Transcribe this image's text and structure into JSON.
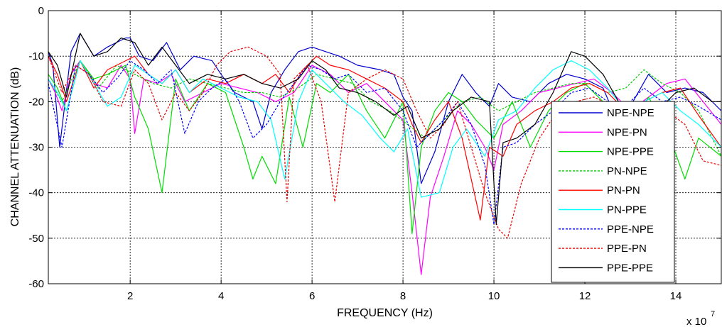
{
  "chart_data": {
    "type": "line",
    "title": "",
    "xlabel": "FREQUENCY (Hz)",
    "ylabel": "CHANNEL ATTENUATION (dB)",
    "x_multiplier_label": {
      "base": "x 10",
      "exponent": "7"
    },
    "xlim": [
      0.2,
      15
    ],
    "ylim": [
      -60,
      0
    ],
    "x_ticks": [
      2,
      4,
      6,
      8,
      10,
      12,
      14
    ],
    "y_ticks": [
      0,
      -10,
      -20,
      -30,
      -40,
      -50,
      -60
    ],
    "grid": true,
    "legend_position": "bottom-right",
    "series": [
      {
        "name": "NPE-NPE",
        "color": "#0000CD",
        "dash": "solid",
        "x": [
          0.2,
          0.3,
          0.45,
          0.7,
          0.9,
          1.2,
          1.5,
          1.9,
          2.0,
          2.2,
          2.5,
          2.8,
          3.1,
          3.4,
          3.8,
          4.0,
          4.3,
          4.7,
          4.9,
          5.1,
          5.4,
          5.7,
          6.0,
          6.3,
          6.6,
          7.0,
          7.5,
          7.8,
          8.0,
          8.2,
          8.4,
          8.7,
          9.0,
          9.3,
          9.6,
          9.9,
          10.1,
          10.4,
          10.8,
          11.2,
          11.6,
          12.0,
          12.4,
          12.7,
          13.0,
          13.4,
          13.8,
          14.2,
          14.6,
          15.0
        ],
        "y": [
          -9,
          -12,
          -30,
          -9,
          -5,
          -10,
          -8,
          -6,
          -6,
          -10,
          -11,
          -7,
          -13,
          -10,
          -11,
          -14,
          -18,
          -20,
          -26,
          -18,
          -13,
          -9,
          -8,
          -9,
          -10,
          -12,
          -13,
          -14,
          -19,
          -22,
          -38,
          -31,
          -20,
          -14,
          -18,
          -21,
          -16,
          -19,
          -20,
          -16,
          -14,
          -15,
          -17,
          -24,
          -21,
          -14,
          -18,
          -17,
          -18,
          -22
        ]
      },
      {
        "name": "NPE-PN",
        "color": "#FF00FF",
        "dash": "solid",
        "x": [
          0.2,
          0.35,
          0.5,
          0.7,
          0.9,
          1.2,
          1.5,
          1.8,
          2.0,
          2.1,
          2.3,
          2.6,
          2.9,
          3.2,
          3.6,
          4.0,
          4.4,
          4.8,
          5.2,
          5.6,
          6.0,
          6.4,
          6.8,
          7.2,
          7.6,
          8.0,
          8.2,
          8.4,
          8.6,
          8.9,
          9.2,
          9.5,
          9.8,
          10.0,
          10.2,
          10.6,
          11.0,
          11.4,
          11.8,
          12.2,
          12.6,
          13.0,
          13.4,
          13.8,
          14.2,
          14.6,
          15.0
        ],
        "y": [
          -15,
          -18,
          -22,
          -14,
          -11,
          -16,
          -17,
          -12,
          -15,
          -27,
          -15,
          -16,
          -14,
          -20,
          -18,
          -16,
          -17,
          -18,
          -20,
          -18,
          -12,
          -14,
          -18,
          -16,
          -20,
          -24,
          -40,
          -58,
          -41,
          -32,
          -22,
          -25,
          -30,
          -35,
          -25,
          -22,
          -18,
          -17,
          -16,
          -15,
          -18,
          -22,
          -19,
          -16,
          -15,
          -20,
          -25
        ]
      },
      {
        "name": "NPE-PPE",
        "color": "#00DD00",
        "dash": "solid",
        "x": [
          0.2,
          0.4,
          0.6,
          0.9,
          1.2,
          1.5,
          1.9,
          2.1,
          2.4,
          2.7,
          3.0,
          3.3,
          3.7,
          4.1,
          4.5,
          4.7,
          4.9,
          5.2,
          5.5,
          5.8,
          6.1,
          6.4,
          6.8,
          7.2,
          7.6,
          8.0,
          8.2,
          8.4,
          8.7,
          9.0,
          9.3,
          9.6,
          10.0,
          10.4,
          10.8,
          11.2,
          11.6,
          12.0,
          12.4,
          12.8,
          13.1,
          13.4,
          13.8,
          14.2,
          14.5,
          15.0
        ],
        "y": [
          -14,
          -17,
          -22,
          -11,
          -15,
          -14,
          -12,
          -19,
          -26,
          -40,
          -15,
          -22,
          -16,
          -18,
          -30,
          -37,
          -32,
          -38,
          -19,
          -30,
          -16,
          -18,
          -14,
          -22,
          -28,
          -20,
          -49,
          -30,
          -22,
          -18,
          -20,
          -24,
          -28,
          -20,
          -30,
          -22,
          -18,
          -16,
          -20,
          -30,
          -24,
          -19,
          -26,
          -37,
          -28,
          -32
        ]
      },
      {
        "name": "PN-NPE",
        "color": "#00CC00",
        "dash": "dashed",
        "x": [
          0.2,
          0.5,
          0.9,
          1.3,
          1.7,
          2.1,
          2.5,
          2.9,
          3.3,
          3.7,
          4.1,
          4.5,
          4.9,
          5.3,
          5.7,
          6.1,
          6.5,
          6.9,
          7.3,
          7.7,
          8.1,
          8.5,
          8.9,
          9.3,
          9.7,
          10.1,
          10.5,
          10.9,
          11.3,
          11.7,
          12.1,
          12.5,
          12.9,
          13.3,
          13.7,
          14.1,
          14.5,
          15.0
        ],
        "y": [
          -15,
          -20,
          -11,
          -17,
          -12,
          -14,
          -16,
          -17,
          -15,
          -16,
          -17,
          -18,
          -18,
          -19,
          -17,
          -14,
          -15,
          -16,
          -20,
          -22,
          -25,
          -28,
          -24,
          -20,
          -19,
          -22,
          -20,
          -18,
          -17,
          -16,
          -16,
          -18,
          -17,
          -13,
          -16,
          -18,
          -22,
          -32
        ]
      },
      {
        "name": "PN-PN",
        "color": "#FF0000",
        "dash": "solid",
        "x": [
          0.2,
          0.4,
          0.6,
          0.9,
          1.2,
          1.5,
          1.9,
          2.1,
          2.4,
          2.7,
          3.0,
          3.3,
          3.7,
          4.1,
          4.5,
          4.9,
          5.2,
          5.5,
          5.8,
          6.1,
          6.4,
          6.8,
          7.2,
          7.6,
          8.0,
          8.2,
          8.4,
          8.7,
          9.0,
          9.3,
          9.7,
          9.9,
          10.2,
          10.5,
          10.9,
          11.3,
          11.7,
          12.1,
          12.5,
          12.9,
          13.3,
          13.7,
          14.1,
          14.5,
          15.0
        ],
        "y": [
          -10,
          -14,
          -20,
          -11,
          -17,
          -13,
          -11,
          -10,
          -14,
          -16,
          -13,
          -18,
          -15,
          -16,
          -14,
          -16,
          -14,
          -18,
          -13,
          -10,
          -12,
          -13,
          -15,
          -17,
          -20,
          -25,
          -29,
          -24,
          -20,
          -28,
          -46,
          -30,
          -32,
          -25,
          -22,
          -20,
          -17,
          -16,
          -18,
          -22,
          -20,
          -18,
          -17,
          -23,
          -30
        ]
      },
      {
        "name": "PN-PPE",
        "color": "#00FFFF",
        "dash": "solid",
        "x": [
          0.2,
          0.4,
          0.6,
          0.9,
          1.2,
          1.5,
          1.8,
          2.1,
          2.4,
          2.7,
          3.0,
          3.3,
          3.6,
          4.0,
          4.4,
          4.8,
          5.1,
          5.4,
          5.7,
          6.0,
          6.3,
          6.7,
          7.1,
          7.5,
          7.8,
          8.1,
          8.4,
          8.8,
          9.1,
          9.4,
          9.8,
          10.1,
          10.5,
          10.9,
          11.3,
          11.7,
          12.1,
          12.5,
          12.9,
          13.3,
          13.7,
          14.1,
          14.5,
          15.0
        ],
        "y": [
          -15,
          -18,
          -22,
          -11,
          -16,
          -21,
          -19,
          -12,
          -14,
          -16,
          -13,
          -18,
          -15,
          -17,
          -19,
          -20,
          -24,
          -37,
          -20,
          -13,
          -16,
          -20,
          -23,
          -28,
          -31,
          -26,
          -41,
          -40,
          -30,
          -26,
          -32,
          -24,
          -22,
          -17,
          -13,
          -11,
          -13,
          -17,
          -22,
          -20,
          -18,
          -22,
          -25,
          -30
        ]
      },
      {
        "name": "PPE-NPE",
        "color": "#0000FF",
        "dash": "dashed",
        "x": [
          0.2,
          0.5,
          0.8,
          1.1,
          1.4,
          1.7,
          2.0,
          2.3,
          2.6,
          2.9,
          3.2,
          3.5,
          3.8,
          4.1,
          4.4,
          4.7,
          5.0,
          5.3,
          5.6,
          5.9,
          6.2,
          6.5,
          6.8,
          7.2,
          7.6,
          8.0,
          8.3,
          8.6,
          8.9,
          9.2,
          9.5,
          9.8,
          10.0,
          10.2,
          10.5,
          10.9,
          11.3,
          11.7,
          12.1,
          12.5,
          12.9,
          13.3,
          13.7,
          14.1,
          14.5,
          15.0
        ],
        "y": [
          -16,
          -30,
          -12,
          -14,
          -18,
          -15,
          -11,
          -13,
          -16,
          -13,
          -27,
          -20,
          -17,
          -15,
          -20,
          -28,
          -25,
          -20,
          -16,
          -12,
          -13,
          -15,
          -14,
          -18,
          -17,
          -22,
          -30,
          -27,
          -24,
          -20,
          -25,
          -34,
          -47,
          -30,
          -29,
          -25,
          -22,
          -18,
          -17,
          -20,
          -21,
          -17,
          -20,
          -19,
          -21,
          -24
        ]
      },
      {
        "name": "PPE-PN",
        "color": "#EE0000",
        "dash": "dashed",
        "x": [
          0.2,
          0.5,
          0.8,
          1.1,
          1.4,
          1.8,
          2.1,
          2.4,
          2.7,
          3.0,
          3.3,
          3.6,
          3.9,
          4.2,
          4.6,
          5.0,
          5.3,
          5.45,
          5.6,
          5.9,
          6.2,
          6.5,
          6.8,
          7.2,
          7.6,
          8.0,
          8.3,
          8.6,
          8.9,
          9.2,
          9.5,
          9.8,
          10.1,
          10.3,
          10.6,
          11.0,
          11.4,
          11.8,
          12.2,
          12.6,
          13.0,
          13.4,
          13.8,
          14.2,
          14.6,
          15.0
        ],
        "y": [
          -10,
          -18,
          -12,
          -14,
          -20,
          -21,
          -13,
          -16,
          -24,
          -18,
          -22,
          -18,
          -12,
          -9,
          -8,
          -10,
          -14,
          -42,
          -15,
          -12,
          -20,
          -42,
          -18,
          -15,
          -13,
          -15,
          -22,
          -28,
          -25,
          -20,
          -30,
          -40,
          -48,
          -50,
          -38,
          -28,
          -22,
          -20,
          -19,
          -21,
          -23,
          -20,
          -22,
          -25,
          -33,
          -34
        ]
      },
      {
        "name": "PPE-PPE",
        "color": "#000000",
        "dash": "solid",
        "x": [
          0.2,
          0.4,
          0.6,
          0.9,
          1.2,
          1.5,
          1.8,
          2.1,
          2.4,
          2.7,
          3.0,
          3.3,
          3.7,
          4.1,
          4.5,
          4.9,
          5.3,
          5.7,
          6.0,
          6.3,
          6.6,
          7.0,
          7.4,
          7.8,
          8.1,
          8.4,
          8.8,
          9.1,
          9.5,
          9.9,
          10.05,
          10.2,
          10.5,
          10.9,
          11.3,
          11.7,
          12.0,
          12.4,
          12.8,
          13.2,
          13.6,
          14.0,
          14.4,
          14.8,
          15.0
        ],
        "y": [
          -9,
          -12,
          -19,
          -5,
          -10,
          -9,
          -6,
          -7,
          -12,
          -8,
          -12,
          -16,
          -14,
          -15,
          -14,
          -16,
          -17,
          -15,
          -11,
          -13,
          -17,
          -18,
          -20,
          -23,
          -21,
          -28,
          -26,
          -22,
          -19,
          -20,
          -47,
          -29,
          -28,
          -25,
          -18,
          -9,
          -10,
          -14,
          -21,
          -25,
          -22,
          -18,
          -17,
          -20,
          -20
        ]
      }
    ]
  }
}
